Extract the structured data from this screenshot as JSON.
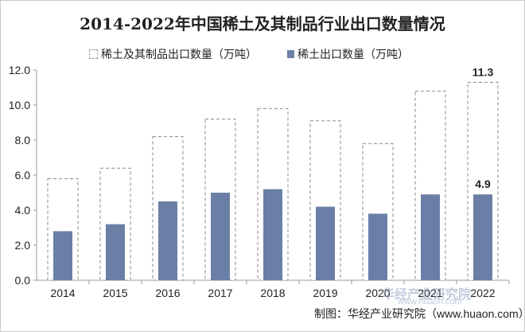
{
  "chart_data": {
    "type": "bar",
    "title": "2014-2022年中国稀土及其制品行业出口数量情况",
    "categories": [
      "2014",
      "2015",
      "2016",
      "2017",
      "2018",
      "2019",
      "2020",
      "2021",
      "2022"
    ],
    "series": [
      {
        "name": "稀土及其制品出口数量（万吨）",
        "values": [
          5.8,
          6.4,
          8.2,
          9.2,
          9.8,
          9.1,
          7.8,
          10.8,
          11.3
        ],
        "style": "dashed-outline",
        "color": "#999999"
      },
      {
        "name": "稀土出口数量（万吨）",
        "values": [
          2.8,
          3.2,
          4.5,
          5.0,
          5.2,
          4.2,
          3.8,
          4.9,
          4.9
        ],
        "style": "solid",
        "color": "#6b7fa6"
      }
    ],
    "ylim": [
      0,
      12
    ],
    "yticks": [
      "0.0",
      "2.0",
      "4.0",
      "6.0",
      "8.0",
      "10.0",
      "12.0"
    ],
    "data_labels": {
      "total_2022": "11.3",
      "rare_earth_2022": "4.9"
    },
    "grid": false,
    "legend": "top"
  },
  "footer": "制图：华经产业研究院（www.huaon.com）",
  "watermark": {
    "text": "华经产业研究院",
    "url": "www.huaon.com"
  }
}
